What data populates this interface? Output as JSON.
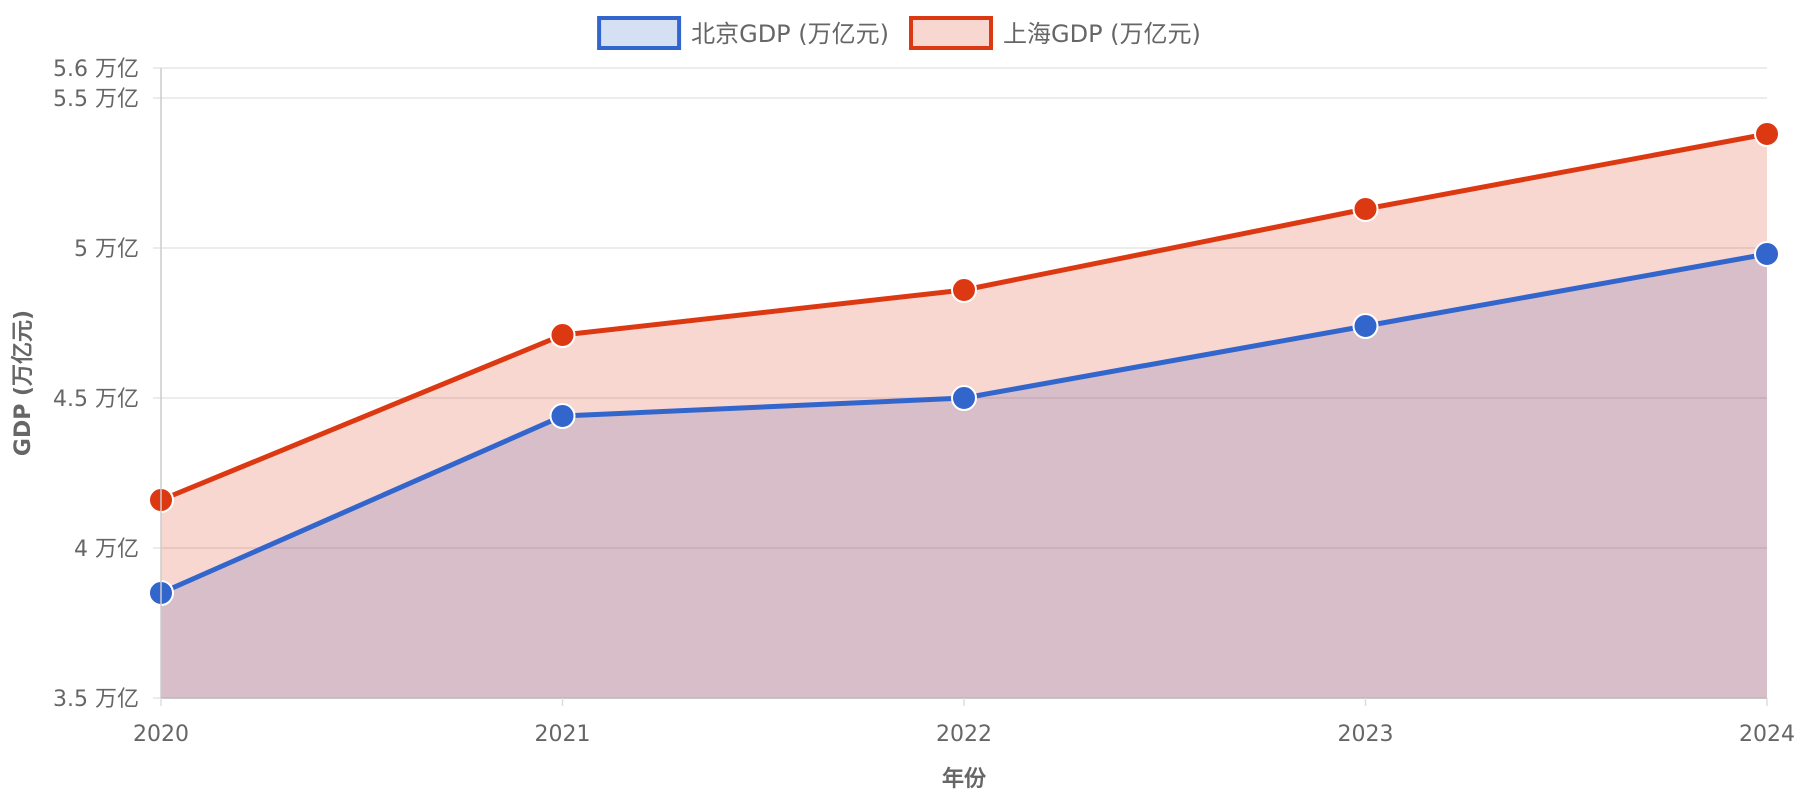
{
  "chart_data": {
    "type": "area",
    "categories": [
      "2020",
      "2021",
      "2022",
      "2023",
      "2024"
    ],
    "series": [
      {
        "name": "北京GDP (万亿元)",
        "values": [
          3.85,
          4.44,
          4.5,
          4.74,
          4.98
        ],
        "color": "#3366cc",
        "fill": "rgba(51,102,204,0.2)"
      },
      {
        "name": "上海GDP (万亿元)",
        "values": [
          4.16,
          4.71,
          4.86,
          5.13,
          5.38
        ],
        "color": "#dc3912",
        "fill": "rgba(220,57,18,0.2)"
      }
    ],
    "xlabel": "年份",
    "ylabel": "GDP (万亿元)",
    "ylim": [
      3.5,
      5.6
    ],
    "y_ticks": [
      3.5,
      4,
      4.5,
      5,
      5.5,
      5.6
    ],
    "y_tick_labels": [
      "3.5 万亿",
      "4 万亿",
      "4.5 万亿",
      "5 万亿",
      "5.5 万亿",
      "5.6 万亿"
    ],
    "grid": true,
    "legend_position": "top"
  }
}
